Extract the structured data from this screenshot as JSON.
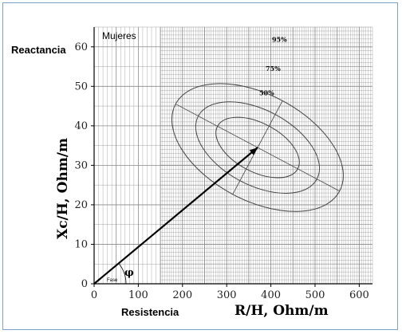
{
  "chart_data": {
    "type": "scatter",
    "title": "Mujeres",
    "corner_label": "Reactancia",
    "ylabel": "Xc/H,  Ohm/m",
    "xlabel": "R/H, Ohm/m",
    "xlabel_prefix": "Resistencia",
    "xlim": [
      0,
      630
    ],
    "ylim": [
      0,
      65
    ],
    "xticks": [
      0,
      100,
      200,
      300,
      400,
      500,
      600
    ],
    "yticks": [
      0,
      10,
      20,
      30,
      40,
      50,
      60
    ],
    "xtick_labels": [
      "0",
      "100",
      "200",
      "300",
      "400",
      "500",
      "600"
    ],
    "ytick_labels": [
      "0",
      "10",
      "20",
      "30",
      "40",
      "50",
      "60"
    ],
    "grid": true,
    "vector": {
      "from": [
        0,
        0
      ],
      "to": [
        370,
        34.5
      ]
    },
    "angle_symbol": "φ",
    "angle_label": "Fase",
    "ellipse_center": [
      370,
      34.5
    ],
    "tolerance_ellipses": [
      {
        "label": "50%",
        "rx": 55,
        "ry": 11.5
      },
      {
        "label": "75%",
        "rx": 85,
        "ry": 17
      },
      {
        "label": "95%",
        "rx": 120,
        "ry": 23.5
      }
    ],
    "colors": {
      "axis": "#000000",
      "grid": "#8a8a8a",
      "vector": "#000000",
      "ellipse": "#444444",
      "frame": "#7fa3c6"
    }
  }
}
